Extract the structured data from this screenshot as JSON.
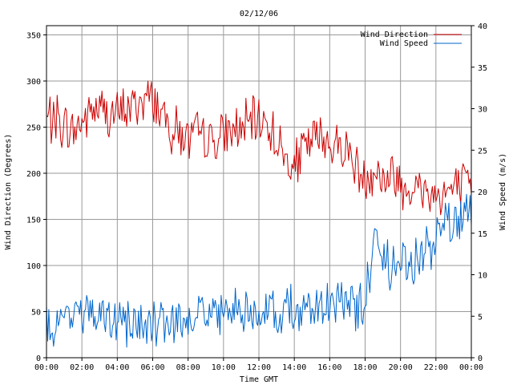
{
  "chart_data": {
    "type": "line",
    "title": "02/12/06",
    "xlabel": "Time GMT",
    "ylabel": "Wind Direction (Degrees)",
    "y2label": "Wind Speed (m/s)",
    "x_ticks": [
      "00:00",
      "02:00",
      "04:00",
      "06:00",
      "08:00",
      "10:00",
      "12:00",
      "14:00",
      "16:00",
      "18:00",
      "20:00",
      "22:00",
      "00:00"
    ],
    "xlim_hours": [
      0,
      24
    ],
    "ylim": [
      0,
      360
    ],
    "y_ticks": [
      0,
      50,
      100,
      150,
      200,
      250,
      300,
      350
    ],
    "y2lim": [
      0,
      40
    ],
    "y2_ticks": [
      0,
      5,
      10,
      15,
      20,
      25,
      30,
      35,
      40
    ],
    "grid": true,
    "legend_position": "top-right",
    "series": [
      {
        "name": "Wind Direction",
        "axis": "left",
        "color": "#cc0000",
        "x": [
          0,
          0.5,
          1,
          1.5,
          2,
          2.5,
          3,
          3.5,
          4,
          4.5,
          5,
          5.5,
          6,
          6.5,
          7,
          7.5,
          8,
          8.5,
          9,
          9.5,
          10,
          10.5,
          11,
          11.5,
          12,
          12.5,
          13,
          13.5,
          14,
          14.5,
          15,
          15.5,
          16,
          16.5,
          17,
          17.5,
          18,
          18.5,
          19,
          19.5,
          20,
          20.5,
          21,
          21.5,
          22,
          22.5,
          23,
          23.5,
          24
        ],
        "values": [
          258,
          262,
          250,
          245,
          255,
          268,
          270,
          265,
          262,
          270,
          275,
          280,
          283,
          265,
          250,
          245,
          235,
          240,
          238,
          232,
          240,
          245,
          248,
          252,
          258,
          255,
          235,
          215,
          205,
          225,
          235,
          240,
          232,
          228,
          228,
          205,
          195,
          205,
          192,
          200,
          190,
          185,
          182,
          180,
          175,
          180,
          182,
          185,
          185
        ]
      },
      {
        "name": "Wind Speed",
        "axis": "right",
        "color": "#0066cc",
        "x": [
          0,
          0.5,
          1,
          1.5,
          2,
          2.5,
          3,
          3.5,
          4,
          4.5,
          5,
          5.5,
          6,
          6.5,
          7,
          7.5,
          8,
          8.5,
          9,
          9.5,
          10,
          10.5,
          11,
          11.5,
          12,
          12.5,
          13,
          13.5,
          14,
          14.5,
          15,
          15.5,
          16,
          16.5,
          17,
          17.5,
          18,
          18.5,
          19,
          19.5,
          20,
          20.5,
          21,
          21.5,
          22,
          22.5,
          23,
          23.5,
          24
        ],
        "values": [
          3.5,
          4.2,
          5,
          5.5,
          5.2,
          5,
          4.8,
          4.5,
          4.5,
          4.6,
          4,
          3.8,
          3.5,
          4,
          3.8,
          4.5,
          5,
          5.2,
          5.5,
          5.5,
          5.8,
          6.2,
          6,
          5.8,
          6,
          5.5,
          5,
          5,
          5.5,
          6,
          6,
          6.5,
          7,
          7,
          6.5,
          6.5,
          7,
          14,
          12,
          11,
          12,
          11.5,
          12.5,
          13,
          14,
          15,
          16,
          17,
          18
        ]
      }
    ]
  }
}
